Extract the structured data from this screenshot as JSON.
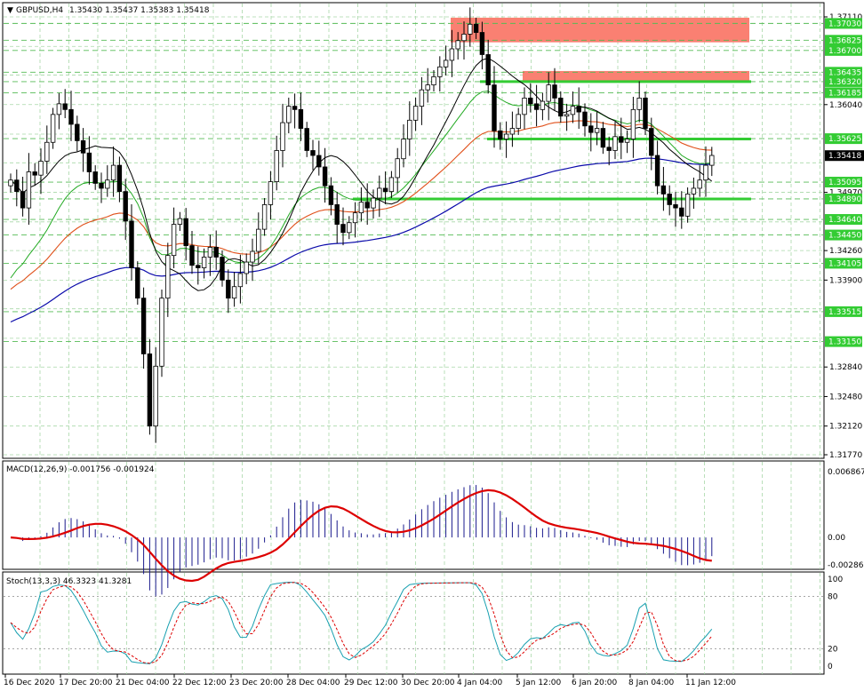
{
  "header": {
    "symbol": "GBPUSD,H4",
    "ohlc": "1.35430 1.35437 1.35383 1.35418"
  },
  "price_axis": {
    "ticks": [
      "1.37110",
      "1.36040",
      "1.34970",
      "1.34260",
      "1.33900",
      "1.32840",
      "1.32480",
      "1.32120",
      "1.31770"
    ],
    "current_price": "1.35418"
  },
  "levels": {
    "resistance_zones": [
      {
        "top": 1.371,
        "bottom": 1.368,
        "color": "#fa8072"
      },
      {
        "top": 1.3645,
        "bottom": 1.3632,
        "color": "#fa8072"
      }
    ],
    "green_lines": [
      {
        "price": 1.3632,
        "label": "1.36320",
        "from": "4 Jan 04:00"
      },
      {
        "price": 1.3562,
        "label": "1.35625",
        "from": "4 Jan 04:00"
      },
      {
        "price": 1.3489,
        "label": "1.34890",
        "from": "29 Dec 12:00"
      }
    ],
    "dashed_labels": [
      "1.37030",
      "1.36825",
      "1.36700",
      "1.36435",
      "1.36320",
      "1.36185",
      "1.35625",
      "1.35095",
      "1.34890",
      "1.34640",
      "1.34450",
      "1.34105",
      "1.33515",
      "1.33150"
    ],
    "dashed_prices": [
      1.3703,
      1.36825,
      1.367,
      1.36435,
      1.3632,
      1.36185,
      1.35625,
      1.35095,
      1.3489,
      1.3464,
      1.3445,
      1.34105,
      1.33515,
      1.3315
    ]
  },
  "chart_data": {
    "type": "candlestick",
    "x_labels": [
      "16 Dec 2020",
      "17 Dec 20:00",
      "21 Dec 04:00",
      "22 Dec 12:00",
      "23 Dec 20:00",
      "28 Dec 04:00",
      "29 Dec 12:00",
      "30 Dec 20:00",
      "4 Jan 04:00",
      "5 Jan 12:00",
      "6 Jan 20:00",
      "8 Jan 04:00",
      "11 Jan 12:00"
    ],
    "y_range": [
      1.3177,
      1.3711
    ],
    "close": [
      1.3512,
      1.3498,
      1.3478,
      1.3522,
      1.3518,
      1.3535,
      1.3558,
      1.3592,
      1.3605,
      1.3598,
      1.358,
      1.356,
      1.3545,
      1.3522,
      1.3508,
      1.3502,
      1.3512,
      1.353,
      1.3498,
      1.3462,
      1.3405,
      1.3368,
      1.33,
      1.3212,
      1.3285,
      1.3368,
      1.342,
      1.3458,
      1.3465,
      1.3432,
      1.3408,
      1.3405,
      1.3418,
      1.343,
      1.3418,
      1.339,
      1.3368,
      1.3382,
      1.3398,
      1.3412,
      1.3425,
      1.3452,
      1.3482,
      1.351,
      1.3548,
      1.3582,
      1.3602,
      1.3598,
      1.3575,
      1.3548,
      1.3542,
      1.3528,
      1.3505,
      1.3482,
      1.3458,
      1.3448,
      1.346,
      1.3472,
      1.3485,
      1.3478,
      1.349,
      1.3502,
      1.3498,
      1.3515,
      1.3538,
      1.3562,
      1.3585,
      1.3602,
      1.3622,
      1.3628,
      1.3638,
      1.365,
      1.3658,
      1.3672,
      1.3682,
      1.369,
      1.3702,
      1.3692,
      1.3665,
      1.3628,
      1.3572,
      1.3562,
      1.3568,
      1.3575,
      1.3592,
      1.3612,
      1.3605,
      1.3598,
      1.3608,
      1.3628,
      1.3612,
      1.359,
      1.3592,
      1.3602,
      1.3595,
      1.3578,
      1.357,
      1.3575,
      1.3552,
      1.3548,
      1.3565,
      1.3558,
      1.3562,
      1.3598,
      1.3612,
      1.3575,
      1.3542,
      1.3505,
      1.3495,
      1.3482,
      1.3478,
      1.3468,
      1.3495,
      1.3502,
      1.3512,
      1.353,
      1.3542
    ],
    "ma_black": "fast moving average (overlaid)",
    "ma_green": "moving average (overlaid)",
    "ma_orange": "moving average (overlaid)",
    "ma_blue": "slow moving average (overlaid)"
  },
  "macd": {
    "title": "MACD(12,26,9) -0.001756 -0.001924",
    "ticks": [
      "0.006867",
      "0.00",
      "-0.002868"
    ],
    "range": [
      -0.002868,
      0.006867
    ]
  },
  "stoch": {
    "title": "Stoch(13,3,3) 46.3323 41.3281",
    "ticks": [
      "100",
      "80",
      "20",
      "0"
    ]
  },
  "colors": {
    "bull": "#ffffff",
    "bear": "#000000",
    "ma_black": "#000000",
    "ma_green": "#22aa22",
    "ma_orange": "#e0501a",
    "ma_blue": "#0a0aaa",
    "level_green": "#33cc33",
    "zone": "#fa8072",
    "macd_hist": "#1a1a8c",
    "macd_signal": "#dd0000",
    "stoch_main": "#18a0b0",
    "stoch_signal": "#dd0000",
    "grid": "#a8d8a8"
  }
}
